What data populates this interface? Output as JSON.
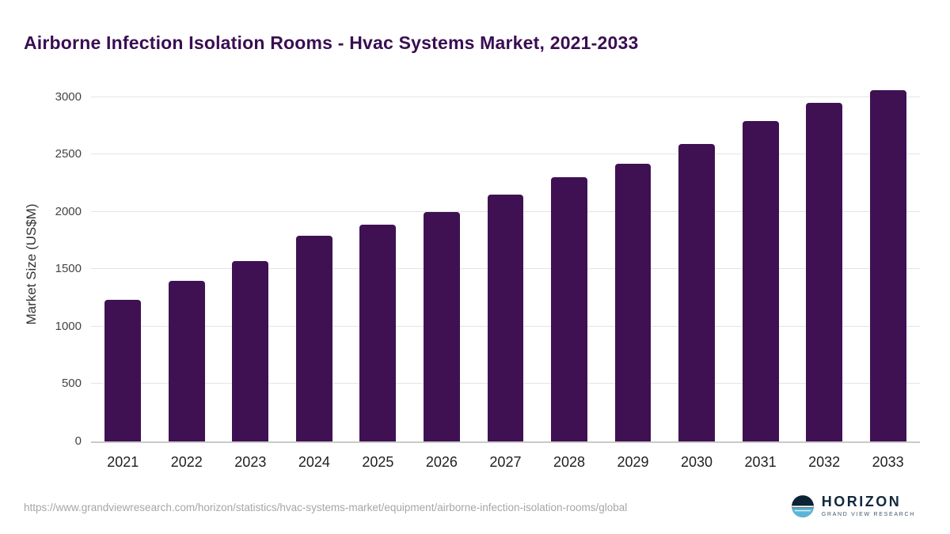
{
  "title": "Airborne Infection Isolation Rooms - Hvac Systems Market, 2021-2033",
  "chart_data": {
    "type": "bar",
    "categories": [
      "2021",
      "2022",
      "2023",
      "2024",
      "2025",
      "2026",
      "2027",
      "2028",
      "2029",
      "2030",
      "2031",
      "2032",
      "2033"
    ],
    "values": [
      1230,
      1400,
      1570,
      1790,
      1890,
      2000,
      2150,
      2300,
      2420,
      2590,
      2790,
      2950,
      3060
    ],
    "title": "Airborne Infection Isolation Rooms - Hvac Systems Market, 2021-2033",
    "xlabel": "",
    "ylabel": "Market Size (US$M)",
    "ylim": [
      0,
      3100
    ],
    "yticks": [
      0,
      500,
      1000,
      1500,
      2000,
      2500,
      3000
    ],
    "grid": true,
    "legend": false
  },
  "colors": {
    "bar": "#3f1153",
    "title": "#3a0e52",
    "grid": "#e4e4e4",
    "axis_text": "#444444",
    "footer_text": "#a6a6a6",
    "logo_navy": "#0c2235",
    "logo_teal": "#5ab6d6"
  },
  "footer": {
    "source_url": "https://www.grandviewresearch.com/horizon/statistics/hvac-systems-market/equipment/airborne-infection-isolation-rooms/global",
    "logo_title": "HORIZON",
    "logo_subtitle": "GRAND VIEW RESEARCH"
  }
}
